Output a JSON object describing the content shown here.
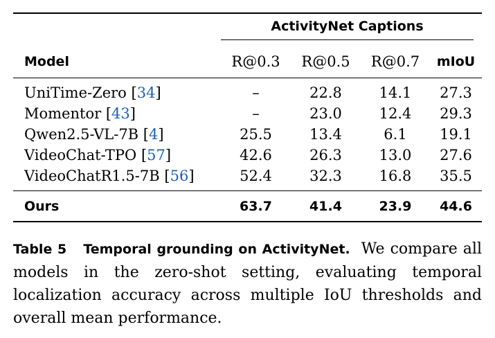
{
  "table": {
    "group_header": "ActivityNet Captions",
    "columns": {
      "model": "Model",
      "r03": "R@0.3",
      "r05": "R@0.5",
      "r07": "R@0.7",
      "miou": "mIoU"
    },
    "rows": [
      {
        "name": "UniTime-Zero",
        "cite_open": "[",
        "cite": "34",
        "cite_close": "]",
        "r03": "–",
        "r05": "22.8",
        "r07": "14.1",
        "miou": "27.3"
      },
      {
        "name": "Momentor",
        "cite_open": "[",
        "cite": "43",
        "cite_close": "]",
        "r03": "–",
        "r05": "23.0",
        "r07": "12.4",
        "miou": "29.3"
      },
      {
        "name": "Qwen2.5-VL-7B",
        "cite_open": "[",
        "cite": "4",
        "cite_close": "]",
        "r03": "25.5",
        "r05": "13.4",
        "r07": "6.1",
        "miou": "19.1"
      },
      {
        "name": "VideoChat-TPO",
        "cite_open": "[",
        "cite": "57",
        "cite_close": "]",
        "r03": "42.6",
        "r05": "26.3",
        "r07": "13.0",
        "miou": "27.6"
      },
      {
        "name": "VideoChatR1.5-7B",
        "cite_open": "[",
        "cite": "56",
        "cite_close": "]",
        "r03": "52.4",
        "r05": "32.3",
        "r07": "16.8",
        "miou": "35.5"
      }
    ],
    "ours": {
      "name": "Ours",
      "r03": "63.7",
      "r05": "41.4",
      "r07": "23.9",
      "miou": "44.6"
    }
  },
  "caption": {
    "label": "Table 5",
    "title": "Temporal grounding on ActivityNet.",
    "text": "We compare all models in the zero-shot setting, evaluating temporal localization accuracy across multiple IoU thresholds and overall mean performance."
  },
  "colors": {
    "citation": "#1a5fb4"
  }
}
